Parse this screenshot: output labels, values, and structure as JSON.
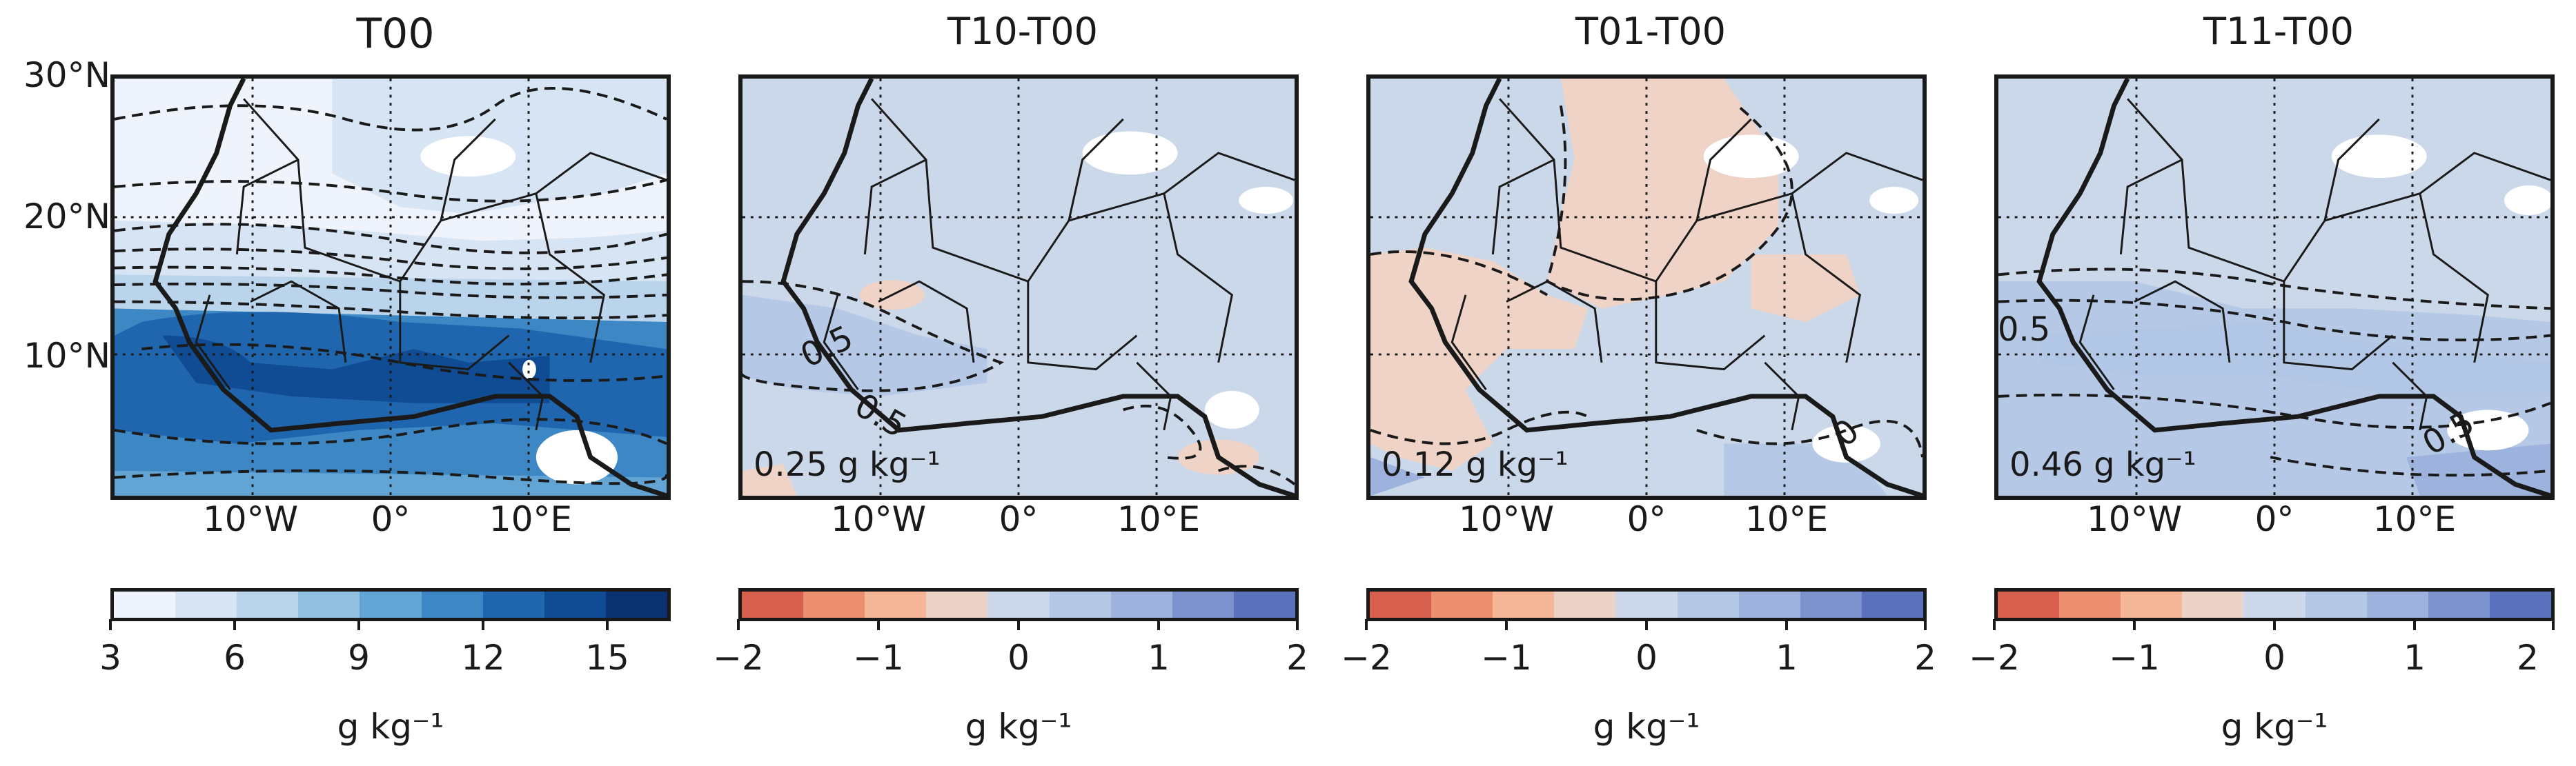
{
  "panels": [
    {
      "title": "T00",
      "colorbar": {
        "ticks": [
          "3",
          "6",
          "9",
          "12",
          "15"
        ],
        "unit": "g kg⁻¹"
      },
      "mean": ""
    },
    {
      "title": "T10-T00",
      "colorbar": {
        "ticks": [
          "−2",
          "−1",
          "0",
          "1",
          "2"
        ],
        "unit": "g kg⁻¹"
      },
      "mean": "0.25 g kg⁻¹"
    },
    {
      "title": "T01-T00",
      "colorbar": {
        "ticks": [
          "−2",
          "−1",
          "0",
          "1",
          "2"
        ],
        "unit": "g kg⁻¹"
      },
      "mean": "0.12 g kg⁻¹"
    },
    {
      "title": "T11-T00",
      "colorbar": {
        "ticks": [
          "−2",
          "−1",
          "0",
          "1",
          "2"
        ],
        "unit": "g kg⁻¹"
      },
      "mean": "0.46 g kg⁻¹"
    }
  ],
  "lat_labels": [
    "30°N",
    "20°N",
    "10°N"
  ],
  "lon_labels": [
    "10°W",
    "0°",
    "10°E"
  ],
  "contour_labels": {
    "p2": [
      "0.5",
      "0.5"
    ],
    "p3": [
      "0"
    ],
    "p4": [
      "0.5",
      "0.5"
    ]
  },
  "colors": {
    "seq": [
      "#eff3fb",
      "#d6e4f3",
      "#bad4ec",
      "#92c0e0",
      "#62a4d3",
      "#3d88c4",
      "#1f66ae",
      "#0f4c94",
      "#0a3270"
    ],
    "div": [
      "#d6604d",
      "#ec8f6e",
      "#f6b698",
      "#ecd3c7",
      "#cdd9eb",
      "#b5c8e6",
      "#9db3dd",
      "#7b92cd",
      "#5a72bc"
    ],
    "pos_fill": "#cbd8ea",
    "neg_fill": "#eed3c6",
    "pos2_fill": "#b2c6e5"
  }
}
